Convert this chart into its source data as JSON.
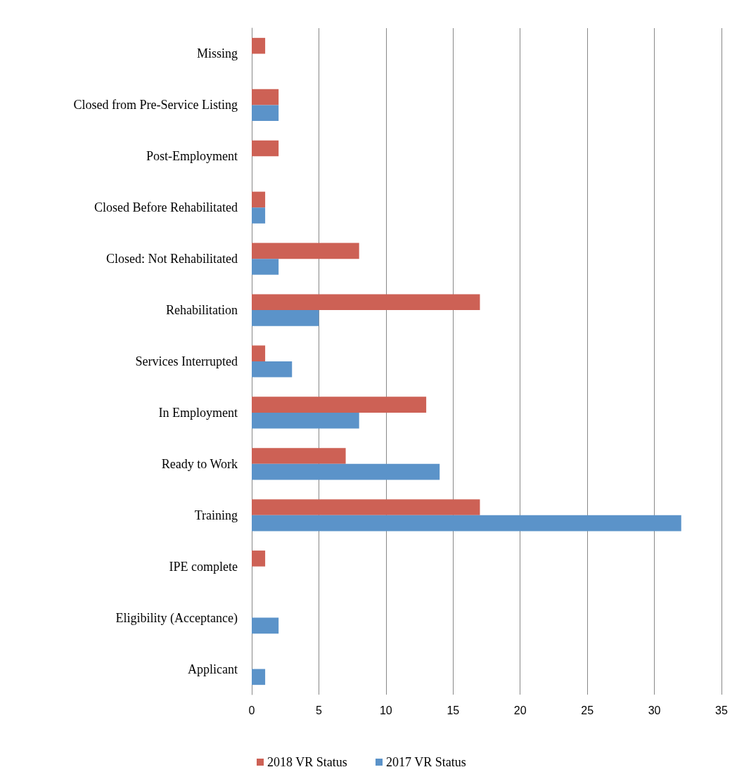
{
  "chart_data": {
    "type": "bar",
    "orientation": "horizontal",
    "categories": [
      "Missing",
      "Closed from Pre-Service Listing",
      "Post-Employment",
      "Closed Before Rehabilitated",
      "Closed: Not Rehabilitated",
      "Rehabilitation",
      "Services Interrupted",
      "In Employment",
      "Ready to Work",
      "Training",
      "IPE complete",
      "Eligibility (Acceptance)",
      "Applicant"
    ],
    "series": [
      {
        "name": "2018 VR Status",
        "color": "#cd6155",
        "values": [
          1,
          2,
          2,
          1,
          8,
          17,
          1,
          13,
          7,
          17,
          1,
          null,
          null
        ]
      },
      {
        "name": "2017 VR Status",
        "color": "#5b93c9",
        "values": [
          null,
          2,
          null,
          1,
          2,
          5,
          3,
          8,
          14,
          32,
          null,
          2,
          1
        ]
      }
    ],
    "xlim": [
      0,
      35
    ],
    "xticks": [
      0,
      5,
      10,
      15,
      20,
      25,
      30,
      35
    ],
    "grid": "x",
    "legend": "bottom"
  }
}
